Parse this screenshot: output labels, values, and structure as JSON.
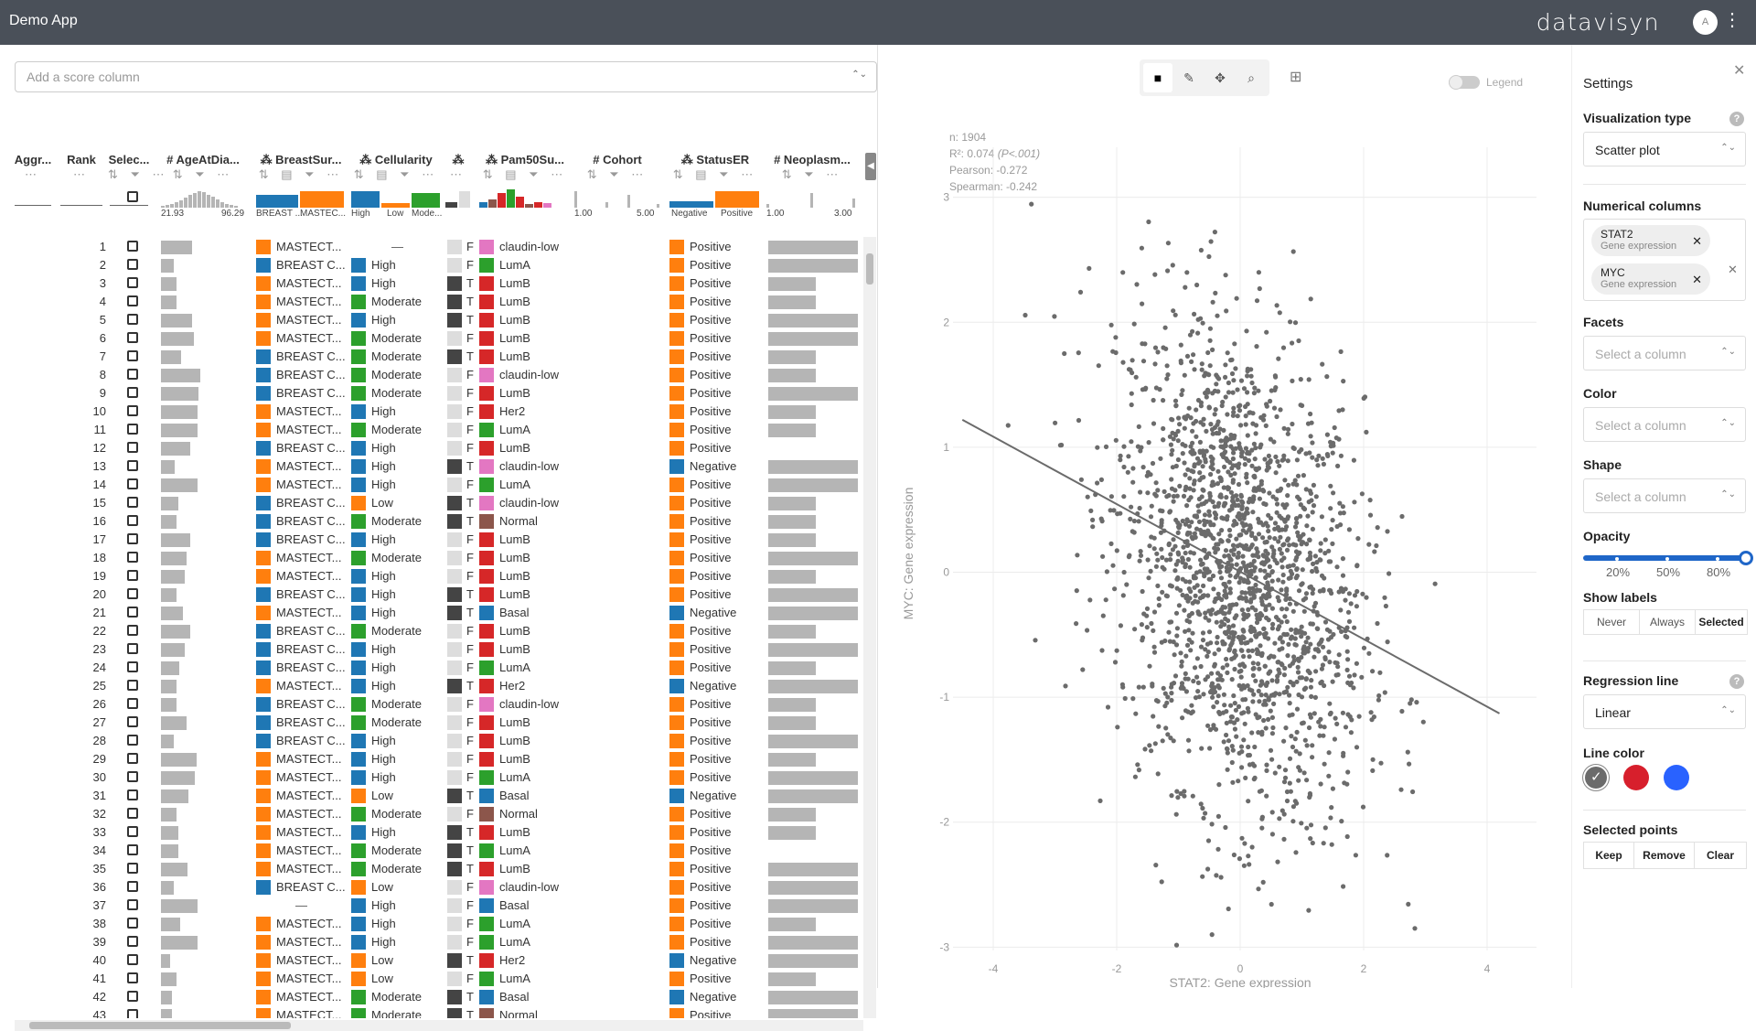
{
  "app": {
    "title": "Demo App",
    "brand": "datavisyn",
    "avatar": "A"
  },
  "score": {
    "placeholder": "Add a score column"
  },
  "columns": [
    {
      "name": "Aggr...",
      "icons": "⋯"
    },
    {
      "name": "Rank",
      "icons": "⋯"
    },
    {
      "name": "Selec...",
      "icons": "⇅ ⏷ ⋯"
    },
    {
      "name": "# AgeAtDia...",
      "icons": "⇅ ⏷ ⋯"
    },
    {
      "name": "⁂ BreastSur...",
      "icons": "⇅ ▤ ⏷ ⋯"
    },
    {
      "name": "⁂ Cellularity",
      "icons": "⇅ ▤ ⏷ ⋯"
    },
    {
      "name": "⁂",
      "icons": "⋯"
    },
    {
      "name": "⁂ Pam50Su...",
      "icons": "⇅ ▤ ⏷ ⋯"
    },
    {
      "name": "# Cohort",
      "icons": "⇅ ⏷ ⋯"
    },
    {
      "name": "⁂ StatusER",
      "icons": "⇅ ▤ ⏷ ⋯"
    },
    {
      "name": "# Neoplasm...",
      "icons": "⇅ ⏷ ⋯"
    }
  ],
  "summaries": {
    "age": {
      "min": "21.93",
      "max": "96.29"
    },
    "surgery": {
      "a": "BREAST ...",
      "b": "MASTEC..."
    },
    "cellularity": {
      "a": "High",
      "b": "Low",
      "c": "Mode..."
    },
    "cohort": {
      "min": "1.00",
      "max": "5.00"
    },
    "er": {
      "a": "Negative",
      "b": "Positive"
    },
    "neo": {
      "min": "1.00",
      "max": "3.00"
    }
  },
  "colors": {
    "mastectomy": "#ff7f0e",
    "breast": "#1f77b4",
    "high": "#1f77b4",
    "moderate": "#2ca02c",
    "low": "#ff7f0e",
    "positive": "#ff7f0e",
    "negative": "#1f77b4",
    "claudin": "#e377c2",
    "luma": "#2ca02c",
    "lumb": "#d62728",
    "her2": "#d62728",
    "basal": "#1f77b4",
    "normal": "#8c564b",
    "tflag": "#444444",
    "fflag": "#dddddd"
  },
  "rows": [
    {
      "rank": "1",
      "age": 0.4,
      "surg": "MASTECT...",
      "cell": "—",
      "flag": "F",
      "pam": "claudin-low",
      "er": "Positive",
      "neo": 0.95
    },
    {
      "rank": "2",
      "age": 0.16,
      "surg": "BREAST C...",
      "cell": "High",
      "flag": "F",
      "pam": "LumA",
      "er": "Positive",
      "neo": 0.95
    },
    {
      "rank": "3",
      "age": 0.2,
      "surg": "MASTECT...",
      "cell": "High",
      "flag": "T",
      "pam": "LumB",
      "er": "Positive",
      "neo": 0.5
    },
    {
      "rank": "4",
      "age": 0.2,
      "surg": "MASTECT...",
      "cell": "Moderate",
      "flag": "T",
      "pam": "LumB",
      "er": "Positive",
      "neo": 0.5
    },
    {
      "rank": "5",
      "age": 0.4,
      "surg": "MASTECT...",
      "cell": "High",
      "flag": "T",
      "pam": "LumB",
      "er": "Positive",
      "neo": 0.95
    },
    {
      "rank": "6",
      "age": 0.42,
      "surg": "MASTECT...",
      "cell": "Moderate",
      "flag": "F",
      "pam": "LumB",
      "er": "Positive",
      "neo": 0.95
    },
    {
      "rank": "7",
      "age": 0.26,
      "surg": "BREAST C...",
      "cell": "Moderate",
      "flag": "T",
      "pam": "LumB",
      "er": "Positive",
      "neo": 0.5
    },
    {
      "rank": "8",
      "age": 0.5,
      "surg": "BREAST C...",
      "cell": "Moderate",
      "flag": "F",
      "pam": "claudin-low",
      "er": "Positive",
      "neo": 0.5
    },
    {
      "rank": "9",
      "age": 0.48,
      "surg": "BREAST C...",
      "cell": "Moderate",
      "flag": "F",
      "pam": "LumB",
      "er": "Positive",
      "neo": 0.95
    },
    {
      "rank": "10",
      "age": 0.47,
      "surg": "MASTECT...",
      "cell": "High",
      "flag": "F",
      "pam": "Her2",
      "er": "Positive",
      "neo": 0.5
    },
    {
      "rank": "11",
      "age": 0.47,
      "surg": "MASTECT...",
      "cell": "Moderate",
      "flag": "F",
      "pam": "LumA",
      "er": "Positive",
      "neo": 0.5
    },
    {
      "rank": "12",
      "age": 0.37,
      "surg": "BREAST C...",
      "cell": "High",
      "flag": "F",
      "pam": "LumB",
      "er": "Positive",
      "neo": 0
    },
    {
      "rank": "13",
      "age": 0.17,
      "surg": "MASTECT...",
      "cell": "High",
      "flag": "T",
      "pam": "claudin-low",
      "er": "Negative",
      "neo": 0.95
    },
    {
      "rank": "14",
      "age": 0.46,
      "surg": "MASTECT...",
      "cell": "High",
      "flag": "F",
      "pam": "LumA",
      "er": "Positive",
      "neo": 0.95
    },
    {
      "rank": "15",
      "age": 0.22,
      "surg": "BREAST C...",
      "cell": "Low",
      "flag": "T",
      "pam": "claudin-low",
      "er": "Positive",
      "neo": 0.5
    },
    {
      "rank": "16",
      "age": 0.2,
      "surg": "BREAST C...",
      "cell": "Moderate",
      "flag": "T",
      "pam": "Normal",
      "er": "Positive",
      "neo": 0.5
    },
    {
      "rank": "17",
      "age": 0.37,
      "surg": "BREAST C...",
      "cell": "High",
      "flag": "F",
      "pam": "LumB",
      "er": "Positive",
      "neo": 0.5
    },
    {
      "rank": "18",
      "age": 0.33,
      "surg": "MASTECT...",
      "cell": "Moderate",
      "flag": "F",
      "pam": "LumB",
      "er": "Positive",
      "neo": 0.95
    },
    {
      "rank": "19",
      "age": 0.3,
      "surg": "MASTECT...",
      "cell": "High",
      "flag": "F",
      "pam": "LumB",
      "er": "Positive",
      "neo": 0.5
    },
    {
      "rank": "20",
      "age": 0.2,
      "surg": "BREAST C...",
      "cell": "High",
      "flag": "T",
      "pam": "LumB",
      "er": "Positive",
      "neo": 0.95
    },
    {
      "rank": "21",
      "age": 0.28,
      "surg": "MASTECT...",
      "cell": "High",
      "flag": "T",
      "pam": "Basal",
      "er": "Negative",
      "neo": 0.95
    },
    {
      "rank": "22",
      "age": 0.37,
      "surg": "BREAST C...",
      "cell": "Moderate",
      "flag": "F",
      "pam": "LumB",
      "er": "Positive",
      "neo": 0.5
    },
    {
      "rank": "23",
      "age": 0.3,
      "surg": "BREAST C...",
      "cell": "High",
      "flag": "F",
      "pam": "LumB",
      "er": "Positive",
      "neo": 0.95
    },
    {
      "rank": "24",
      "age": 0.23,
      "surg": "BREAST C...",
      "cell": "High",
      "flag": "F",
      "pam": "LumA",
      "er": "Positive",
      "neo": 0.5
    },
    {
      "rank": "25",
      "age": 0.2,
      "surg": "MASTECT...",
      "cell": "High",
      "flag": "T",
      "pam": "Her2",
      "er": "Negative",
      "neo": 0.95
    },
    {
      "rank": "26",
      "age": 0.2,
      "surg": "BREAST C...",
      "cell": "Moderate",
      "flag": "F",
      "pam": "claudin-low",
      "er": "Positive",
      "neo": 0.5
    },
    {
      "rank": "27",
      "age": 0.33,
      "surg": "BREAST C...",
      "cell": "Moderate",
      "flag": "F",
      "pam": "LumB",
      "er": "Positive",
      "neo": 0.5
    },
    {
      "rank": "28",
      "age": 0.16,
      "surg": "BREAST C...",
      "cell": "High",
      "flag": "F",
      "pam": "LumB",
      "er": "Positive",
      "neo": 0.95
    },
    {
      "rank": "29",
      "age": 0.45,
      "surg": "MASTECT...",
      "cell": "High",
      "flag": "F",
      "pam": "LumB",
      "er": "Positive",
      "neo": 0.5
    },
    {
      "rank": "30",
      "age": 0.43,
      "surg": "MASTECT...",
      "cell": "High",
      "flag": "F",
      "pam": "LumA",
      "er": "Positive",
      "neo": 0.95
    },
    {
      "rank": "31",
      "age": 0.35,
      "surg": "MASTECT...",
      "cell": "Low",
      "flag": "T",
      "pam": "Basal",
      "er": "Negative",
      "neo": 0.95
    },
    {
      "rank": "32",
      "age": 0.2,
      "surg": "MASTECT...",
      "cell": "Moderate",
      "flag": "F",
      "pam": "Normal",
      "er": "Positive",
      "neo": 0.5
    },
    {
      "rank": "33",
      "age": 0.22,
      "surg": "MASTECT...",
      "cell": "High",
      "flag": "T",
      "pam": "LumB",
      "er": "Positive",
      "neo": 0.5
    },
    {
      "rank": "34",
      "age": 0.22,
      "surg": "MASTECT...",
      "cell": "Moderate",
      "flag": "T",
      "pam": "LumA",
      "er": "Positive",
      "neo": 0
    },
    {
      "rank": "35",
      "age": 0.34,
      "surg": "MASTECT...",
      "cell": "Moderate",
      "flag": "T",
      "pam": "LumB",
      "er": "Positive",
      "neo": 0.95
    },
    {
      "rank": "36",
      "age": 0.16,
      "surg": "BREAST C...",
      "cell": "Low",
      "flag": "F",
      "pam": "claudin-low",
      "er": "Positive",
      "neo": 0.95
    },
    {
      "rank": "37",
      "age": 0.47,
      "surg": "—",
      "cell": "High",
      "flag": "F",
      "pam": "Basal",
      "er": "Positive",
      "neo": 0.95
    },
    {
      "rank": "38",
      "age": 0.24,
      "surg": "MASTECT...",
      "cell": "High",
      "flag": "F",
      "pam": "LumA",
      "er": "Positive",
      "neo": 0.5
    },
    {
      "rank": "39",
      "age": 0.47,
      "surg": "MASTECT...",
      "cell": "High",
      "flag": "F",
      "pam": "LumA",
      "er": "Positive",
      "neo": 0.95
    },
    {
      "rank": "40",
      "age": 0.12,
      "surg": "MASTECT...",
      "cell": "Low",
      "flag": "T",
      "pam": "Her2",
      "er": "Negative",
      "neo": 0.95
    },
    {
      "rank": "41",
      "age": 0.2,
      "surg": "MASTECT...",
      "cell": "Low",
      "flag": "F",
      "pam": "LumA",
      "er": "Positive",
      "neo": 0.5
    },
    {
      "rank": "42",
      "age": 0.14,
      "surg": "MASTECT...",
      "cell": "Moderate",
      "flag": "T",
      "pam": "Basal",
      "er": "Negative",
      "neo": 0.95
    },
    {
      "rank": "43",
      "age": 0.14,
      "surg": "MASTECT...",
      "cell": "Moderate",
      "flag": "T",
      "pam": "Normal",
      "er": "Positive",
      "neo": 0.95
    }
  ],
  "toolbar": {
    "legend_label": "Legend"
  },
  "stats": {
    "n": "n: 1904",
    "r2": "R²: 0.074",
    "p": "(P<.001)",
    "pearson": "Pearson: -0.272",
    "spearman": "Spearman: -0.242"
  },
  "chart_data": {
    "type": "scatter",
    "xlabel": "STAT2: Gene expression",
    "ylabel": "MYC: Gene expression",
    "xlim": [
      -4.8,
      4.8
    ],
    "ylim": [
      -3.1,
      3.4
    ],
    "xticks": [
      "-4",
      "-2",
      "0",
      "2",
      "4"
    ],
    "yticks": [
      "3",
      "2",
      "1",
      "0",
      "-1",
      "-2",
      "-3"
    ],
    "n_points": 1904,
    "x_mean": 0,
    "y_mean": 0,
    "x_sd": 1,
    "y_sd": 1,
    "correlation": -0.272,
    "regression": {
      "type": "linear",
      "x0": -4.5,
      "y0": 1.22,
      "x1": 4.2,
      "y1": -1.13
    },
    "point_color": "#6b6b6b",
    "line_color": "#6b6b6b"
  },
  "settings": {
    "title": "Settings",
    "vis_type_label": "Visualization type",
    "vis_type_value": "Scatter plot",
    "num_label": "Numerical columns",
    "chips": [
      {
        "name": "STAT2",
        "sub": "Gene expression"
      },
      {
        "name": "MYC",
        "sub": "Gene expression"
      }
    ],
    "facets_label": "Facets",
    "facets_ph": "Select a column",
    "color_label": "Color",
    "color_ph": "Select a column",
    "shape_label": "Shape",
    "shape_ph": "Select a column",
    "opacity_label": "Opacity",
    "opacity_value": 1.0,
    "opacity_ticks": [
      "20%",
      "50%",
      "80%"
    ],
    "labels_label": "Show labels",
    "labels_opts": [
      "Never",
      "Always",
      "Selected"
    ],
    "labels_active": "Selected",
    "reg_label": "Regression line",
    "reg_value": "Linear",
    "linecolor_label": "Line color",
    "linecolors": [
      "#6b6b6b",
      "#d71f2c",
      "#2962ff"
    ],
    "selected_label": "Selected points",
    "sel_buttons": [
      "Keep",
      "Remove",
      "Clear"
    ]
  }
}
